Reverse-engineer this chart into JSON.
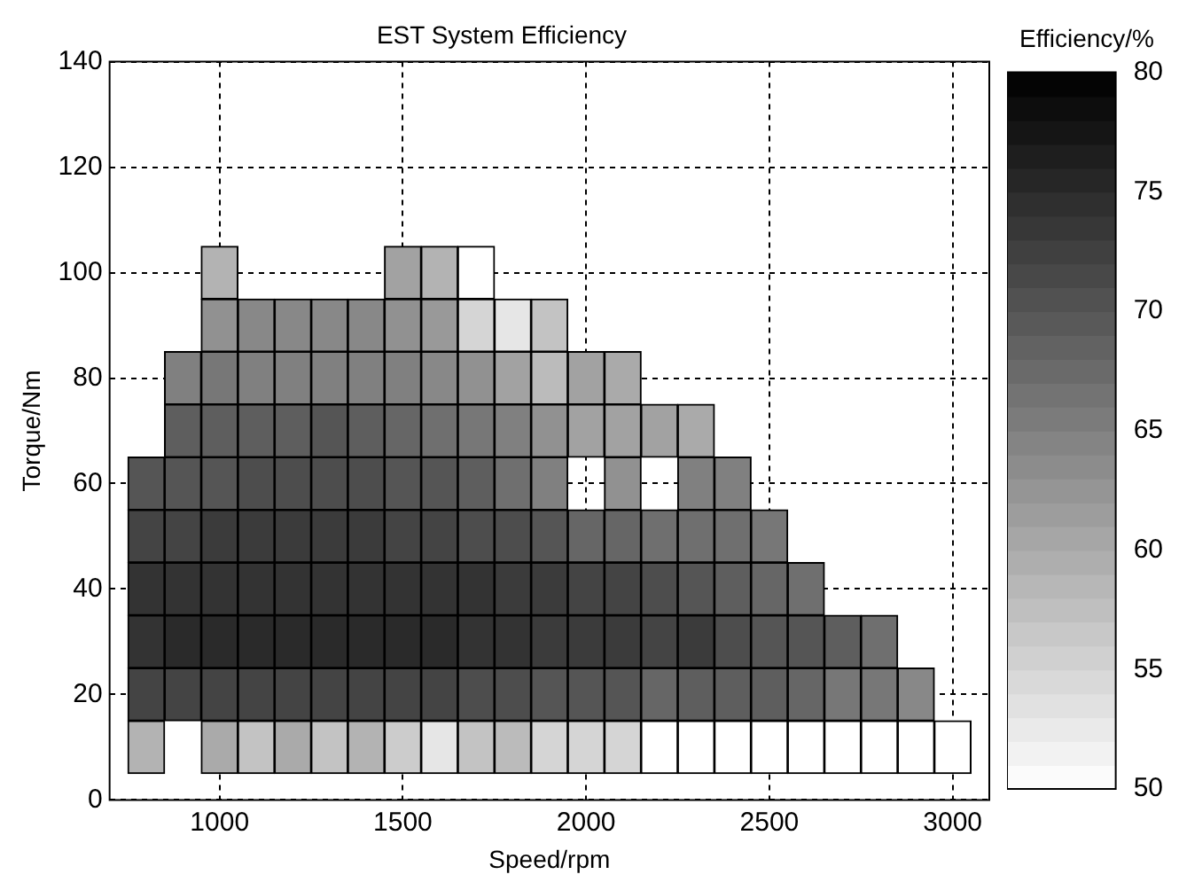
{
  "chart_data": {
    "type": "heatmap",
    "title": "EST System Efficiency",
    "xlabel": "Speed/rpm",
    "ylabel": "Torque/Nm",
    "clabel": "Efficiency/%",
    "x": [
      800,
      900,
      1000,
      1100,
      1200,
      1300,
      1400,
      1500,
      1600,
      1700,
      1800,
      1900,
      2000,
      2100,
      2200,
      2300,
      2400,
      2500,
      2600,
      2700,
      2800,
      2900,
      3000
    ],
    "y": [
      100,
      90,
      80,
      70,
      60,
      50,
      40,
      30,
      20,
      10
    ],
    "cells": [
      [
        null,
        null,
        59,
        null,
        null,
        null,
        null,
        61,
        59,
        50,
        null,
        null,
        null,
        null,
        null,
        null,
        null,
        null,
        null,
        null,
        null,
        null,
        null
      ],
      [
        null,
        null,
        63,
        64,
        64,
        64,
        64,
        63,
        62,
        55,
        53,
        57,
        null,
        null,
        null,
        null,
        null,
        null,
        null,
        null,
        null,
        null,
        null
      ],
      [
        null,
        65,
        66,
        65,
        65,
        65,
        65,
        65,
        64,
        63,
        61,
        58,
        61,
        60,
        null,
        null,
        null,
        null,
        null,
        null,
        null,
        null,
        null
      ],
      [
        null,
        69,
        69,
        69,
        69,
        70,
        69,
        68,
        67,
        66,
        65,
        63,
        61,
        61,
        61,
        60,
        null,
        null,
        null,
        null,
        null,
        null,
        null
      ],
      [
        70,
        70,
        70,
        71,
        71,
        71,
        71,
        70,
        70,
        69,
        67,
        65,
        null,
        63,
        null,
        65,
        65,
        null,
        null,
        null,
        null,
        null,
        null
      ],
      [
        72,
        72,
        73,
        73,
        73,
        73,
        73,
        72,
        72,
        71,
        71,
        70,
        68,
        68,
        67,
        67,
        67,
        66,
        null,
        null,
        null,
        null,
        null
      ],
      [
        74,
        74,
        74,
        74,
        74,
        74,
        74,
        74,
        74,
        74,
        73,
        73,
        72,
        72,
        71,
        70,
        69,
        68,
        67,
        null,
        null,
        null,
        null
      ],
      [
        74,
        75,
        75,
        75,
        75,
        75,
        75,
        75,
        75,
        74,
        74,
        73,
        73,
        73,
        72,
        73,
        71,
        70,
        70,
        69,
        67,
        null,
        null
      ],
      [
        72,
        72,
        72,
        72,
        72,
        72,
        72,
        72,
        72,
        71,
        71,
        70,
        70,
        70,
        68,
        69,
        69,
        69,
        68,
        66,
        66,
        64,
        null
      ],
      [
        59,
        null,
        60,
        57,
        60,
        57,
        59,
        56,
        53,
        57,
        58,
        55,
        55,
        55,
        50,
        50,
        50,
        50,
        50,
        50,
        50,
        50,
        50
      ]
    ],
    "xlim": [
      700,
      3100
    ],
    "xticks": [
      1000,
      1500,
      2000,
      2500,
      3000
    ],
    "ylim": [
      0,
      140
    ],
    "yticks": [
      0,
      20,
      40,
      60,
      80,
      100,
      120,
      140
    ],
    "clim": [
      50,
      80
    ],
    "cticks": [
      50,
      55,
      60,
      65,
      70,
      75,
      80
    ],
    "grid": true
  }
}
